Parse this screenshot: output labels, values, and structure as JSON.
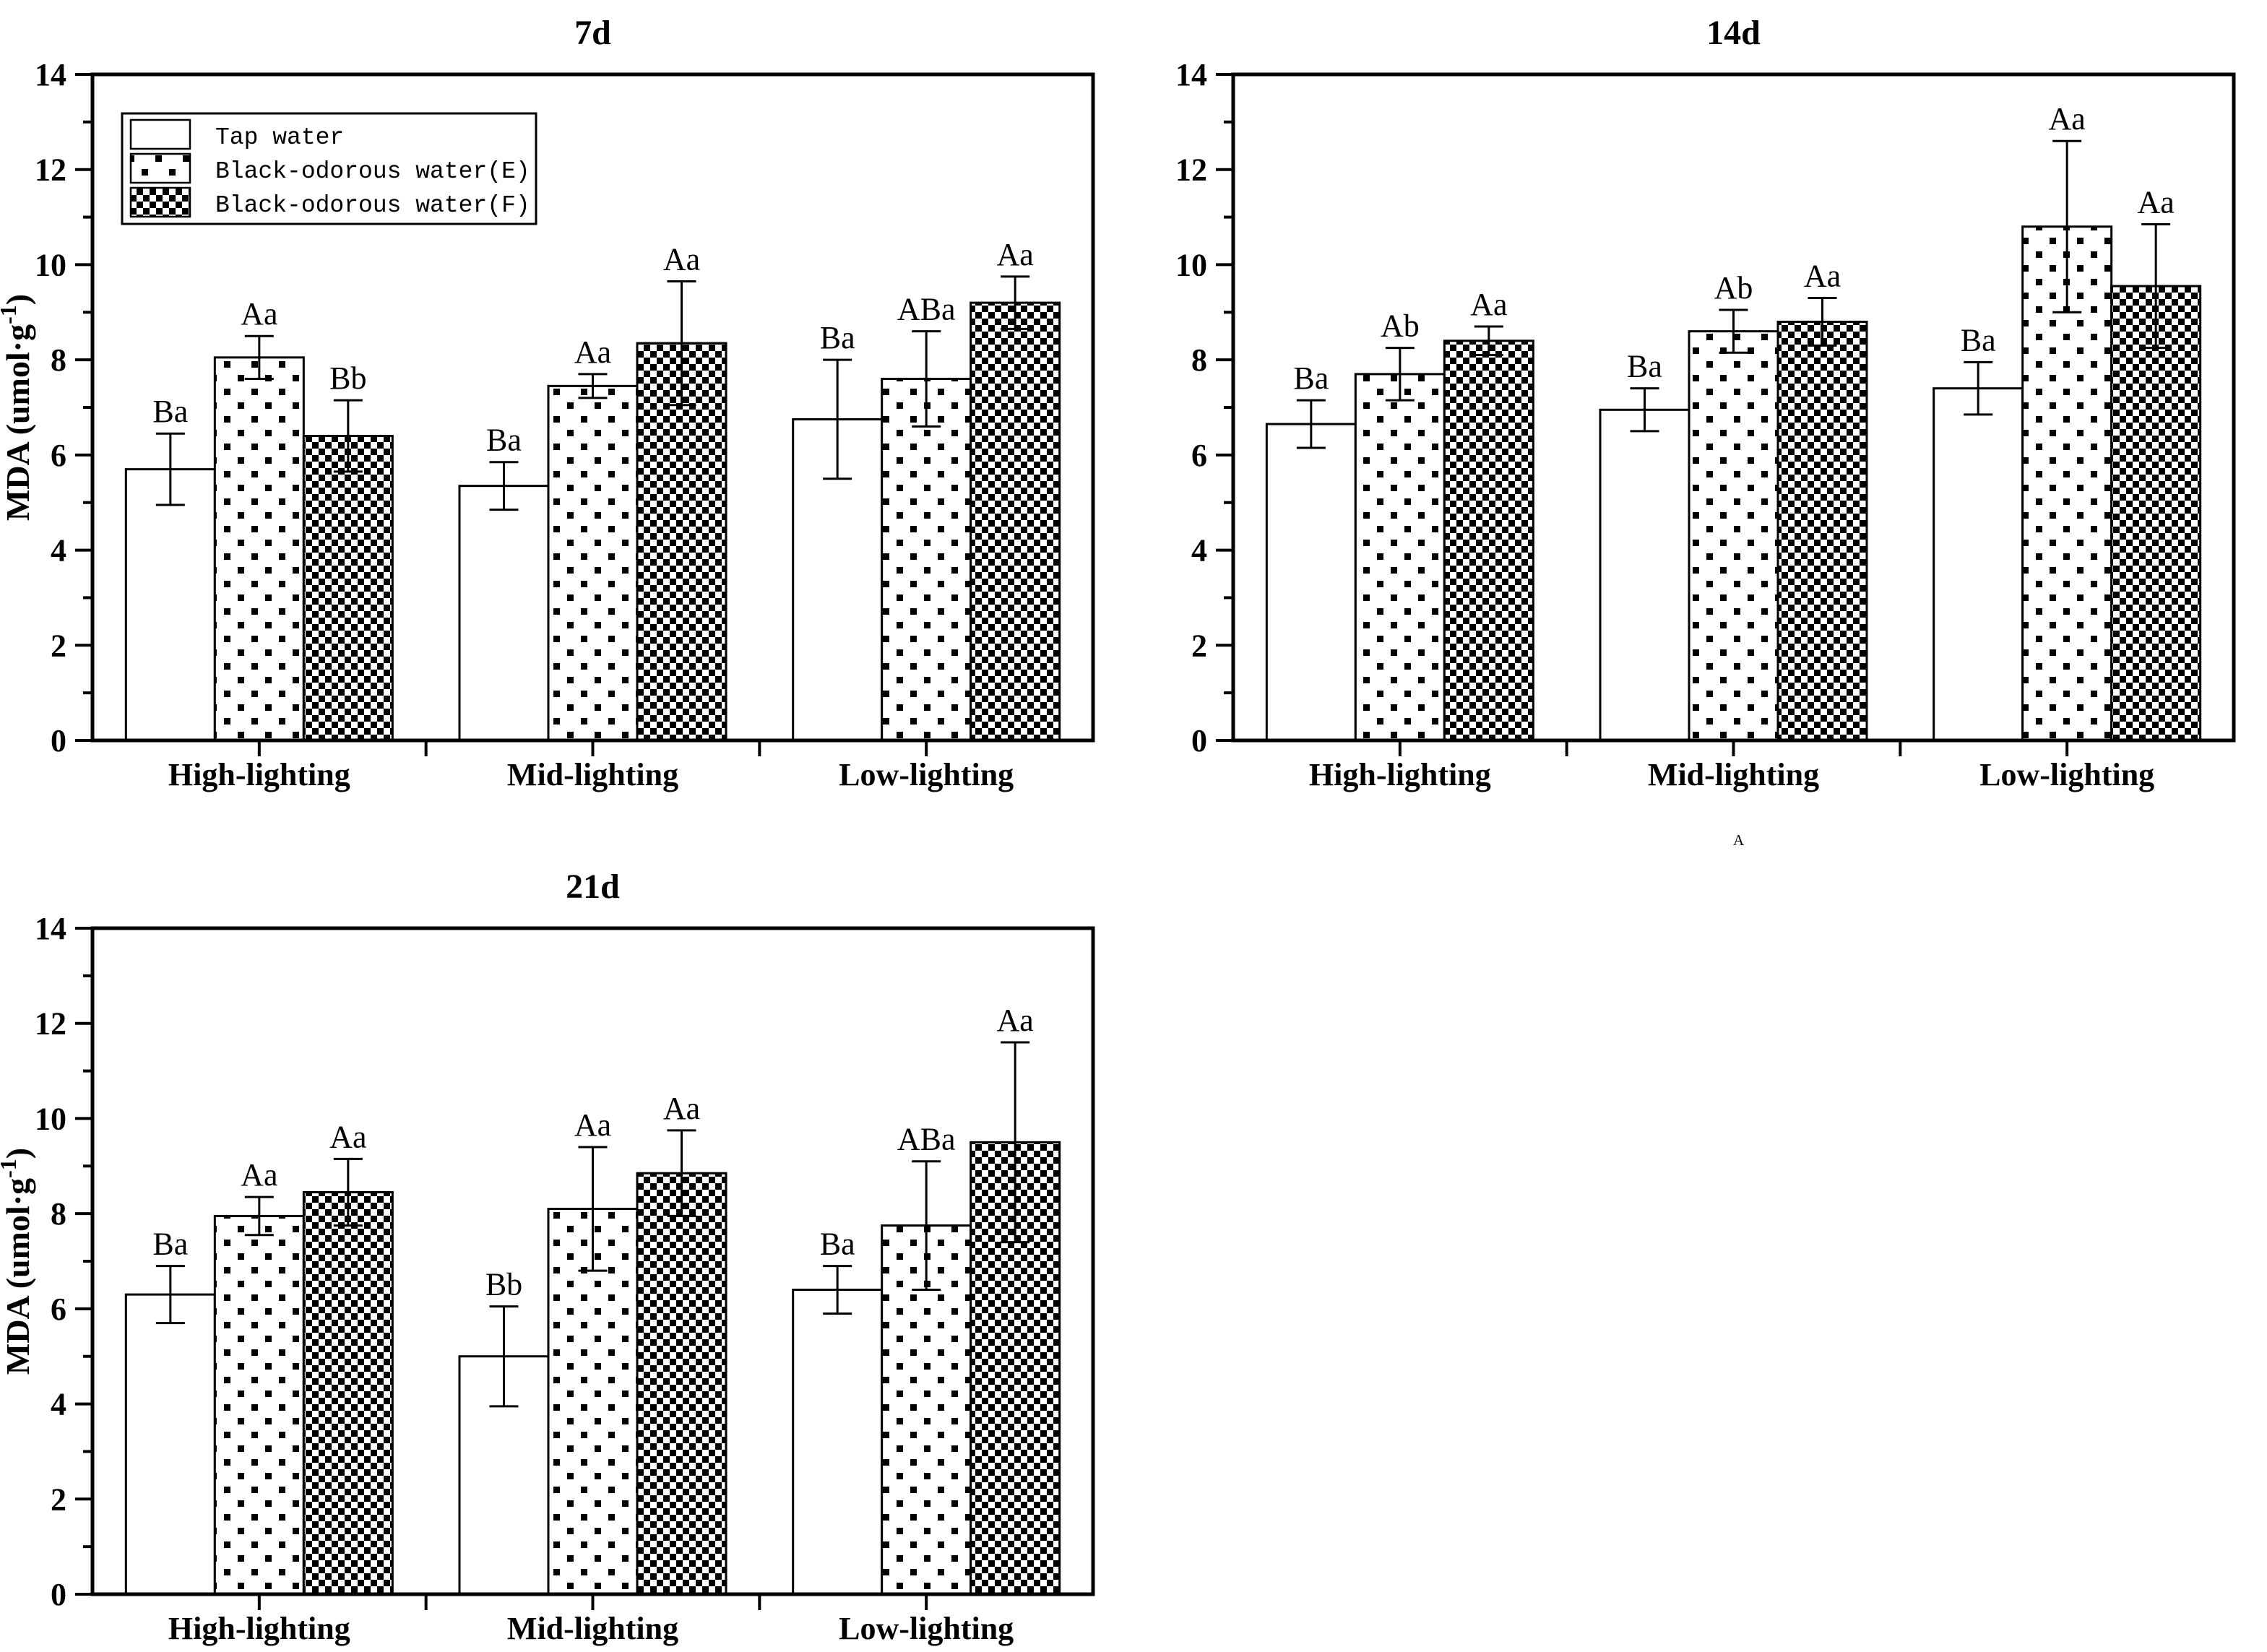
{
  "figure": {
    "background": "#ffffff",
    "ink": "#000000"
  },
  "stray_mark": {
    "text": "A"
  },
  "legend": {
    "position": "upper-left-of-first-panel",
    "items": [
      {
        "label": "Tap water",
        "pattern": "plain"
      },
      {
        "label": "Black-odorous water(E)",
        "pattern": "dots"
      },
      {
        "label": "Black-odorous water(F)",
        "pattern": "checker"
      }
    ]
  },
  "chart_data": [
    {
      "type": "bar",
      "title": "7d",
      "categories": [
        "High-lighting",
        "Mid-lighting",
        "Low-lighting"
      ],
      "xlabel": "",
      "ylabel": "MDA (umol·g-1)",
      "ylabel_parts": {
        "main": "MDA (umol·g",
        "sup": "-1",
        "close": ")"
      },
      "ylim": [
        0,
        14
      ],
      "ytick_step": 2,
      "minor_ticks": true,
      "grid": false,
      "show_legend": true,
      "series": [
        {
          "name": "Tap water",
          "pattern": "plain",
          "values": [
            5.7,
            5.35,
            6.75
          ],
          "errors": [
            0.75,
            0.5,
            1.25
          ],
          "letters": [
            "Ba",
            "Ba",
            "Ba"
          ]
        },
        {
          "name": "Black-odorous water(E)",
          "pattern": "dots",
          "values": [
            8.05,
            7.45,
            7.6
          ],
          "errors": [
            0.45,
            0.25,
            1.0
          ],
          "letters": [
            "Aa",
            "Aa",
            "ABa"
          ]
        },
        {
          "name": "Black-odorous water(F)",
          "pattern": "checker",
          "values": [
            6.4,
            8.35,
            9.2
          ],
          "errors": [
            0.75,
            1.3,
            0.55
          ],
          "letters": [
            "Bb",
            "Aa",
            "Aa"
          ]
        }
      ]
    },
    {
      "type": "bar",
      "title": "14d",
      "categories": [
        "High-lighting",
        "Mid-lighting",
        "Low-lighting"
      ],
      "xlabel": "",
      "ylabel": "",
      "ylabel_parts": null,
      "ylim": [
        0,
        14
      ],
      "ytick_step": 2,
      "minor_ticks": true,
      "grid": false,
      "show_legend": false,
      "series": [
        {
          "name": "Tap water",
          "pattern": "plain",
          "values": [
            6.65,
            6.95,
            7.4
          ],
          "errors": [
            0.5,
            0.45,
            0.55
          ],
          "letters": [
            "Ba",
            "Ba",
            "Ba"
          ]
        },
        {
          "name": "Black-odorous water(E)",
          "pattern": "dots",
          "values": [
            7.7,
            8.6,
            10.8
          ],
          "errors": [
            0.55,
            0.45,
            1.8
          ],
          "letters": [
            "Ab",
            "Ab",
            "Aa"
          ]
        },
        {
          "name": "Black-odorous water(F)",
          "pattern": "checker",
          "values": [
            8.4,
            8.8,
            9.55
          ],
          "errors": [
            0.3,
            0.5,
            1.3
          ],
          "letters": [
            "Aa",
            "Aa",
            "Aa"
          ]
        }
      ]
    },
    {
      "type": "bar",
      "title": "21d",
      "categories": [
        "High-lighting",
        "Mid-lighting",
        "Low-lighting"
      ],
      "xlabel": "",
      "ylabel": "MDA (umol·g-1)",
      "ylabel_parts": {
        "main": "MDA (umol·g",
        "sup": "-1",
        "close": ")"
      },
      "ylim": [
        0,
        14
      ],
      "ytick_step": 2,
      "minor_ticks": true,
      "grid": false,
      "show_legend": false,
      "series": [
        {
          "name": "Tap water",
          "pattern": "plain",
          "values": [
            6.3,
            5.0,
            6.4
          ],
          "errors": [
            0.6,
            1.05,
            0.5
          ],
          "letters": [
            "Ba",
            "Bb",
            "Ba"
          ]
        },
        {
          "name": "Black-odorous water(E)",
          "pattern": "dots",
          "values": [
            7.95,
            8.1,
            7.75
          ],
          "errors": [
            0.4,
            1.3,
            1.35
          ],
          "letters": [
            "Aa",
            "Aa",
            "ABa"
          ]
        },
        {
          "name": "Black-odorous water(F)",
          "pattern": "checker",
          "values": [
            8.45,
            8.85,
            9.5
          ],
          "errors": [
            0.7,
            0.9,
            2.1
          ],
          "letters": [
            "Aa",
            "Aa",
            "Aa"
          ]
        }
      ]
    }
  ]
}
